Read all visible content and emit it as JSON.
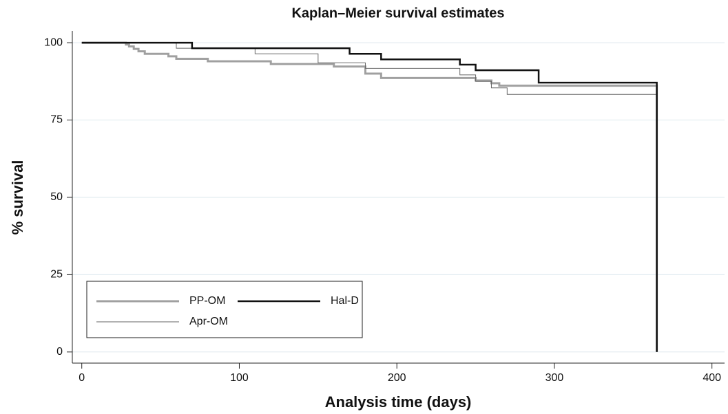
{
  "chart_data": {
    "type": "step-line",
    "title": "Kaplan–Meier survival estimates",
    "xlabel": "Analysis time (days)",
    "ylabel": "% survival",
    "xlim": [
      -6,
      408
    ],
    "ylim": [
      -3.6,
      103.8
    ],
    "xticks": [
      0,
      100,
      200,
      300,
      400
    ],
    "yticks": [
      0,
      25,
      50,
      75,
      100
    ],
    "grid": true,
    "series": [
      {
        "name": "PP-OM",
        "color": "#a0a0a0",
        "width": 3,
        "x": [
          0,
          28,
          30,
          33,
          36,
          40,
          55,
          60,
          80,
          120,
          160,
          180,
          190,
          250,
          260,
          265,
          365
        ],
        "values": [
          100,
          99.4,
          98.8,
          98,
          97.2,
          96.4,
          95.6,
          94.8,
          94,
          93.1,
          92.3,
          90,
          88.6,
          87.8,
          86.9,
          86.1,
          0
        ]
      },
      {
        "name": "Hal-D",
        "color": "#111111",
        "width": 2.5,
        "x": [
          0,
          70,
          170,
          190,
          240,
          250,
          290,
          365
        ],
        "values": [
          100,
          98.2,
          96.4,
          94.6,
          92.9,
          91.1,
          87.1,
          0
        ]
      },
      {
        "name": "Apr-OM",
        "color": "#666666",
        "width": 1,
        "x": [
          0,
          60,
          110,
          150,
          180,
          240,
          250,
          260,
          270,
          365
        ],
        "values": [
          100,
          98.2,
          96.4,
          93.5,
          91.7,
          89.6,
          87.5,
          85.4,
          83.3,
          0
        ]
      }
    ]
  }
}
